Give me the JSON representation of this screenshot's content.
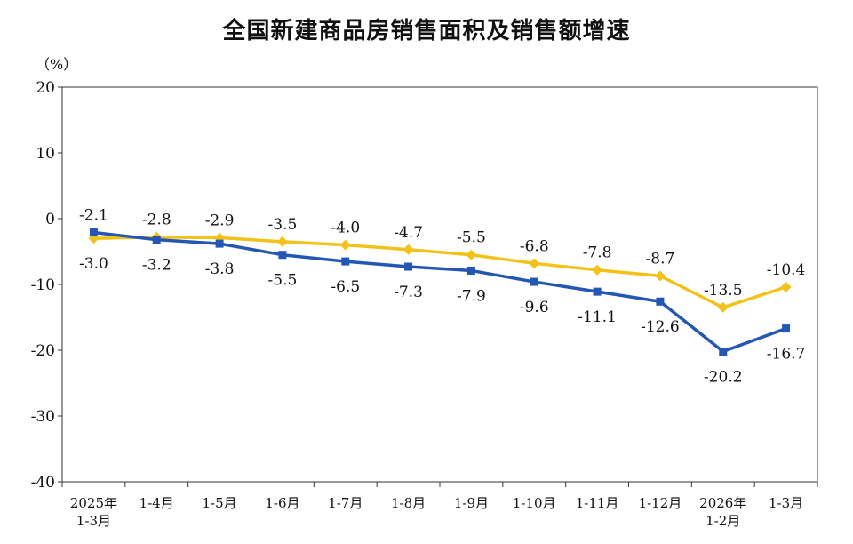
{
  "chart_data": {
    "type": "line",
    "title": "全国新建商品房销售面积及销售额增速",
    "ylabel": "（%）",
    "xlabel": "",
    "ylim": [
      -40,
      20
    ],
    "yticks": [
      20,
      10,
      0,
      -10,
      -20,
      -30,
      -40
    ],
    "grid": false,
    "legend": "none",
    "categories": [
      [
        "2025年",
        "1-3月"
      ],
      [
        "1-4月"
      ],
      [
        "1-5月"
      ],
      [
        "1-6月"
      ],
      [
        "1-7月"
      ],
      [
        "1-8月"
      ],
      [
        "1-9月"
      ],
      [
        "1-10月"
      ],
      [
        "1-11月"
      ],
      [
        "1-12月"
      ],
      [
        "2026年",
        "1-2月"
      ],
      [
        "1-3月"
      ]
    ],
    "series": [
      {
        "color": "#2457b3",
        "marker": "square",
        "values": [
          -2.1,
          -3.2,
          -3.8,
          -5.5,
          -6.5,
          -7.3,
          -7.9,
          -9.6,
          -11.1,
          -12.6,
          -20.2,
          -16.7
        ],
        "labels": [
          "-2.1",
          "-3.2",
          "-3.8",
          "-5.5",
          "-6.5",
          "-7.3",
          "-7.9",
          "-9.6",
          "-11.1",
          "-12.6",
          "-20.2",
          "-16.7"
        ]
      },
      {
        "color": "#f2c21b",
        "marker": "diamond",
        "values": [
          -3.0,
          -2.8,
          -2.9,
          -3.5,
          -4.0,
          -4.7,
          -5.5,
          -6.8,
          -7.8,
          -8.7,
          -13.5,
          -10.4
        ],
        "labels": [
          "-3.0",
          "-2.8",
          "-2.9",
          "-3.5",
          "-4.0",
          "-4.7",
          "-5.5",
          "-6.8",
          "-7.8",
          "-8.7",
          "-13.5",
          "-10.4"
        ]
      }
    ]
  }
}
